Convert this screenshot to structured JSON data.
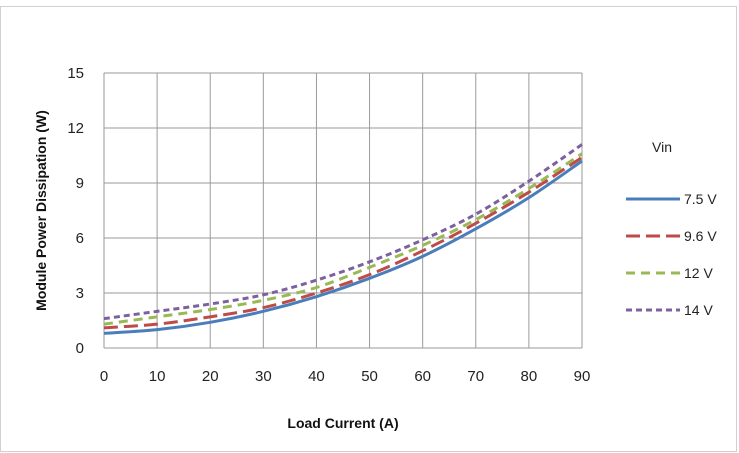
{
  "chart_data": {
    "type": "line",
    "title": "",
    "xlabel": "Load Current (A)",
    "ylabel": "Module Power Dissipation (W)",
    "xlim": [
      0,
      90
    ],
    "ylim": [
      0,
      15
    ],
    "x_ticks": [
      "0",
      "10",
      "20",
      "30",
      "40",
      "50",
      "60",
      "70",
      "80",
      "90"
    ],
    "y_ticks": [
      "0",
      "3",
      "6",
      "9",
      "12",
      "15"
    ],
    "grid": true,
    "legend_title": "Vin",
    "legend_position": "right",
    "x": [
      0,
      10,
      20,
      30,
      40,
      50,
      60,
      70,
      80,
      90
    ],
    "series": [
      {
        "name": "7.5 V",
        "color": "#4a7ebb",
        "dash": "solid",
        "values": [
          0.8,
          1.0,
          1.4,
          2.0,
          2.8,
          3.8,
          5.0,
          6.5,
          8.2,
          10.2
        ]
      },
      {
        "name": "9.6 V",
        "color": "#be4b48",
        "dash": "long-dash",
        "values": [
          1.1,
          1.3,
          1.7,
          2.2,
          3.0,
          4.0,
          5.3,
          6.8,
          8.5,
          10.4
        ]
      },
      {
        "name": "12 V",
        "color": "#98b954",
        "dash": "dash",
        "values": [
          1.3,
          1.7,
          2.1,
          2.6,
          3.3,
          4.4,
          5.6,
          7.0,
          8.7,
          10.6
        ]
      },
      {
        "name": "14 V",
        "color": "#7d60a0",
        "dash": "short-dash",
        "values": [
          1.6,
          2.0,
          2.4,
          2.9,
          3.7,
          4.7,
          5.9,
          7.3,
          9.1,
          11.1
        ]
      }
    ]
  }
}
